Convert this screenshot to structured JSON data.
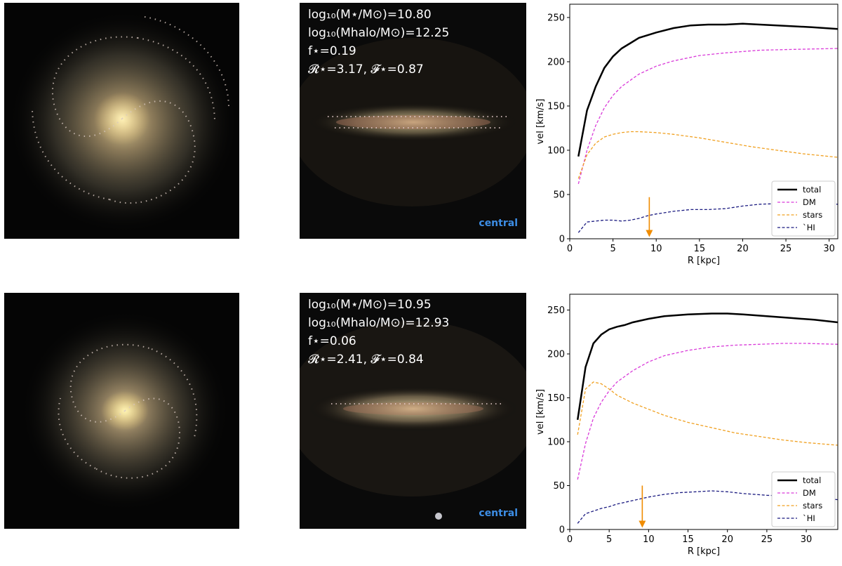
{
  "rows": [
    {
      "info": {
        "line1": "log₁₀(M⋆/M⊙)=10.80",
        "line2": "log₁₀(Mhalo/M⊙)=12.25",
        "line3": "f⋆=0.19",
        "line4": "𝓡⋆=3.17, 𝓕⋆=0.87"
      },
      "label": "central"
    },
    {
      "info": {
        "line1": "log₁₀(M⋆/M⊙)=10.95",
        "line2": "log₁₀(Mhalo/M⊙)=12.93",
        "line3": "f⋆=0.06",
        "line4": "𝓡⋆=2.41, 𝓕⋆=0.84"
      },
      "label": "central"
    }
  ],
  "chart_data": [
    {
      "type": "line",
      "xlabel": "R [kpc]",
      "ylabel": "vel [km/s]",
      "xlim": [
        0,
        31
      ],
      "ylim": [
        0,
        265
      ],
      "xticks": [
        0,
        5,
        10,
        15,
        20,
        25,
        30
      ],
      "yticks": [
        0,
        50,
        100,
        150,
        200,
        250
      ],
      "legend_position": "bottom-right",
      "arrow": {
        "x": 9.2,
        "y_from": 47,
        "y_to": 2,
        "color": "#f08c00"
      },
      "series": [
        {
          "name": "total",
          "color": "#000000",
          "width": 2.5,
          "dashed": false,
          "x": [
            1,
            2,
            3,
            4,
            5,
            6,
            7,
            8,
            10,
            12,
            14,
            16,
            18,
            20,
            22,
            24,
            26,
            28,
            31
          ],
          "y": [
            93,
            145,
            172,
            193,
            206,
            215,
            221,
            227,
            233,
            238,
            241,
            242,
            242,
            243,
            242,
            241,
            240,
            239,
            237
          ]
        },
        {
          "name": "DM",
          "color": "#d93ad9",
          "width": 1.3,
          "dashed": true,
          "x": [
            1,
            2,
            3,
            4,
            5,
            6,
            8,
            10,
            12,
            15,
            18,
            22,
            26,
            31
          ],
          "y": [
            62,
            100,
            128,
            148,
            162,
            172,
            186,
            195,
            201,
            207,
            210,
            213,
            214,
            215
          ]
        },
        {
          "name": "stars",
          "color": "#f0a020",
          "width": 1.3,
          "dashed": true,
          "x": [
            1,
            2,
            3,
            4,
            5,
            6,
            7,
            8,
            10,
            12,
            15,
            18,
            21,
            24,
            27,
            31
          ],
          "y": [
            68,
            95,
            108,
            115,
            118,
            120,
            121,
            121,
            120,
            118,
            114,
            109,
            104,
            100,
            96,
            92
          ]
        },
        {
          "name": "`HI",
          "color": "#1a1a80",
          "width": 1.3,
          "dashed": true,
          "x": [
            1,
            2,
            3,
            4,
            5,
            6,
            7,
            8,
            9,
            10,
            12,
            14,
            16,
            18,
            20,
            22,
            25,
            28,
            31
          ],
          "y": [
            7,
            19,
            20,
            21,
            21,
            20,
            21,
            23,
            26,
            28,
            31,
            33,
            33,
            34,
            37,
            39,
            40,
            39,
            39
          ]
        }
      ]
    },
    {
      "type": "line",
      "xlabel": "R [kpc]",
      "ylabel": "vel [km/s]",
      "xlim": [
        0,
        34
      ],
      "ylim": [
        0,
        268
      ],
      "xticks": [
        0,
        5,
        10,
        15,
        20,
        25,
        30
      ],
      "yticks": [
        0,
        50,
        100,
        150,
        200,
        250
      ],
      "legend_position": "bottom-right",
      "arrow": {
        "x": 9.2,
        "y_from": 50,
        "y_to": 2,
        "color": "#f08c00"
      },
      "series": [
        {
          "name": "total",
          "color": "#000000",
          "width": 2.5,
          "dashed": false,
          "x": [
            1,
            2,
            3,
            4,
            5,
            6,
            7,
            8,
            10,
            12,
            15,
            18,
            20,
            22,
            25,
            28,
            31,
            34
          ],
          "y": [
            125,
            185,
            212,
            222,
            228,
            231,
            233,
            236,
            240,
            243,
            245,
            246,
            246,
            245,
            243,
            241,
            239,
            236
          ]
        },
        {
          "name": "DM",
          "color": "#d93ad9",
          "width": 1.3,
          "dashed": true,
          "x": [
            1,
            2,
            3,
            4,
            5,
            6,
            8,
            10,
            12,
            15,
            18,
            21,
            24,
            27,
            30,
            34
          ],
          "y": [
            57,
            98,
            127,
            145,
            158,
            168,
            181,
            191,
            198,
            204,
            208,
            210,
            211,
            212,
            212,
            211
          ]
        },
        {
          "name": "stars",
          "color": "#f0a020",
          "width": 1.3,
          "dashed": true,
          "x": [
            1,
            2,
            3,
            4,
            5,
            6,
            8,
            10,
            12,
            15,
            18,
            21,
            24,
            27,
            30,
            34
          ],
          "y": [
            108,
            160,
            168,
            166,
            160,
            153,
            144,
            137,
            130,
            122,
            116,
            110,
            106,
            102,
            99,
            96
          ]
        },
        {
          "name": "`HI",
          "color": "#1a1a80",
          "width": 1.3,
          "dashed": true,
          "x": [
            1,
            2,
            3,
            4,
            5,
            6,
            7,
            8,
            9,
            10,
            12,
            14,
            16,
            18,
            20,
            22,
            25,
            28,
            31,
            34
          ],
          "y": [
            7,
            18,
            21,
            24,
            26,
            29,
            31,
            33,
            35,
            37,
            40,
            42,
            43,
            44,
            43,
            41,
            39,
            38,
            36,
            34
          ]
        }
      ]
    }
  ]
}
